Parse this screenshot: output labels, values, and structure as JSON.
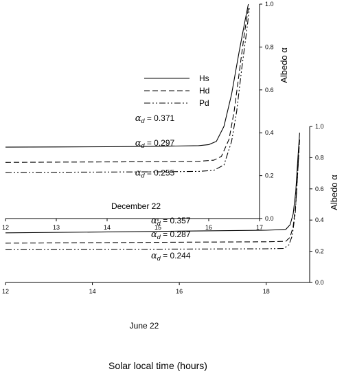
{
  "legend": [
    {
      "label": "Hs",
      "style": "solid"
    },
    {
      "label": "Hd",
      "style": "dashed"
    },
    {
      "label": "Pd",
      "style": "dashdotdot"
    }
  ],
  "chart_data": [
    {
      "type": "line",
      "panel_label": "December 22",
      "ylabel": "Albedo α",
      "xlabel": "",
      "xlim": [
        12,
        17
      ],
      "ylim": [
        0.0,
        1.0
      ],
      "xticks": [
        12,
        13,
        14,
        15,
        16,
        17
      ],
      "yticks": [
        0.0,
        0.2,
        0.4,
        0.6,
        0.8,
        1.0
      ],
      "annotations": [
        {
          "text": "= 0.371",
          "x": 14.55,
          "y": 0.455
        },
        {
          "text": "= 0.297",
          "x": 14.55,
          "y": 0.34
        },
        {
          "text": "= 0.255",
          "x": 14.55,
          "y": 0.2
        }
      ],
      "series": [
        {
          "name": "Hs",
          "x": [
            12,
            13,
            14,
            15,
            15.8,
            16.0,
            16.15,
            16.3,
            16.45,
            16.6,
            16.72,
            16.78
          ],
          "y": [
            0.333,
            0.334,
            0.335,
            0.337,
            0.34,
            0.345,
            0.36,
            0.43,
            0.58,
            0.78,
            0.93,
            1.0
          ]
        },
        {
          "name": "Hd",
          "x": [
            12,
            13,
            14,
            15,
            15.8,
            16.1,
            16.25,
            16.4,
            16.5,
            16.6,
            16.7,
            16.78
          ],
          "y": [
            0.262,
            0.263,
            0.264,
            0.265,
            0.267,
            0.272,
            0.29,
            0.37,
            0.5,
            0.68,
            0.86,
            0.98
          ]
        },
        {
          "name": "Pd",
          "x": [
            12,
            13,
            14,
            15,
            15.8,
            16.1,
            16.3,
            16.45,
            16.55,
            16.65,
            16.75,
            16.8
          ],
          "y": [
            0.215,
            0.216,
            0.217,
            0.218,
            0.22,
            0.225,
            0.25,
            0.36,
            0.5,
            0.7,
            0.88,
            0.98
          ]
        }
      ]
    },
    {
      "type": "line",
      "panel_label": "June 22",
      "ylabel": "Albedo α",
      "xlabel": "Solar local time (hours)",
      "xlim": [
        12,
        19
      ],
      "ylim": [
        0.0,
        1.0
      ],
      "xticks": [
        12,
        14,
        16,
        18
      ],
      "yticks": [
        0.0,
        0.2,
        0.4,
        0.6,
        0.8,
        1.0
      ],
      "annotations": [
        {
          "text": "= 0.357",
          "x": 15.35,
          "y": 0.378
        },
        {
          "text": "= 0.287",
          "x": 15.35,
          "y": 0.29
        },
        {
          "text": "= 0.244",
          "x": 15.35,
          "y": 0.155
        }
      ],
      "series": [
        {
          "name": "Hs",
          "x": [
            12,
            14,
            16,
            18,
            18.45,
            18.55,
            18.62,
            18.68,
            18.73,
            18.77
          ],
          "y": [
            0.318,
            0.323,
            0.329,
            0.335,
            0.34,
            0.37,
            0.44,
            0.58,
            0.8,
            0.96
          ]
        },
        {
          "name": "Hd",
          "x": [
            12,
            14,
            16,
            18,
            18.45,
            18.55,
            18.62,
            18.68,
            18.73,
            18.77
          ],
          "y": [
            0.252,
            0.255,
            0.258,
            0.261,
            0.264,
            0.29,
            0.36,
            0.5,
            0.73,
            0.92
          ]
        },
        {
          "name": "Pd",
          "x": [
            12,
            14,
            16,
            18,
            18.4,
            18.52,
            18.6,
            18.67,
            18.72,
            18.76
          ],
          "y": [
            0.21,
            0.212,
            0.214,
            0.216,
            0.218,
            0.24,
            0.3,
            0.45,
            0.68,
            0.88
          ]
        }
      ]
    }
  ]
}
